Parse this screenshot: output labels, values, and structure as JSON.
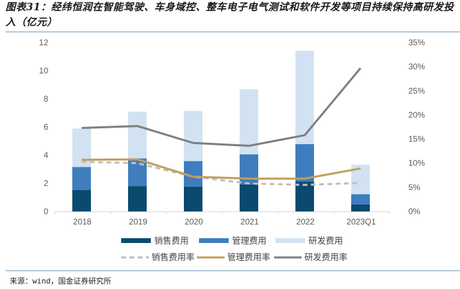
{
  "title": "图表31：经纬恒润在智能驾驶、车身域控、整车电子电气测试和软件开发等项目持续保持高研发投入（亿元）",
  "source": "来源：wind，国金证券研究所",
  "chart_data": {
    "type": "bar",
    "subtype": "stacked-bar-with-lines",
    "title": "经纬恒润在智能驾驶、车身域控、整车电子电气测试和软件开发等项目持续保持高研发投入（亿元）",
    "categories": [
      "2018",
      "2019",
      "2020",
      "2021",
      "2022",
      "2023Q1"
    ],
    "y_left": {
      "ylim": [
        0,
        12
      ],
      "ticks": [
        0,
        2,
        4,
        6,
        8,
        10,
        12
      ],
      "tick_labels": [
        "0",
        "2",
        "4",
        "6",
        "8",
        "10",
        "12"
      ],
      "unit": "亿元"
    },
    "y_right": {
      "ylim": [
        0,
        35
      ],
      "ticks": [
        0,
        5,
        10,
        15,
        20,
        25,
        30,
        35
      ],
      "tick_labels": [
        "0%",
        "5%",
        "10%",
        "15%",
        "20%",
        "25%",
        "30%",
        "35%"
      ]
    },
    "grid": false,
    "legend_position": "bottom",
    "bar_series": [
      {
        "name": "销售费用",
        "color": "#0b4a6f",
        "values": [
          1.53,
          1.8,
          1.76,
          1.92,
          2.13,
          0.49
        ]
      },
      {
        "name": "管理费用",
        "color": "#3f7dbe",
        "values": [
          1.63,
          1.97,
          1.82,
          2.14,
          2.65,
          0.73
        ]
      },
      {
        "name": "研发费用",
        "color": "#d2e2f2",
        "values": [
          2.73,
          3.32,
          3.56,
          4.62,
          6.63,
          2.1
        ]
      }
    ],
    "line_series": [
      {
        "name": "销售费用率",
        "color": "#bfbfbf",
        "style": "dashed",
        "axis": "right",
        "values": [
          10.3,
          10.0,
          7.2,
          5.8,
          5.5,
          5.9
        ]
      },
      {
        "name": "管理费用率",
        "color": "#c29e5a",
        "style": "solid",
        "axis": "right",
        "values": [
          10.7,
          10.8,
          7.2,
          6.8,
          6.8,
          8.9
        ]
      },
      {
        "name": "研发费用率",
        "color": "#7f7f7f",
        "style": "solid",
        "axis": "right",
        "values": [
          17.3,
          17.7,
          14.2,
          13.6,
          15.8,
          29.7
        ]
      }
    ]
  }
}
